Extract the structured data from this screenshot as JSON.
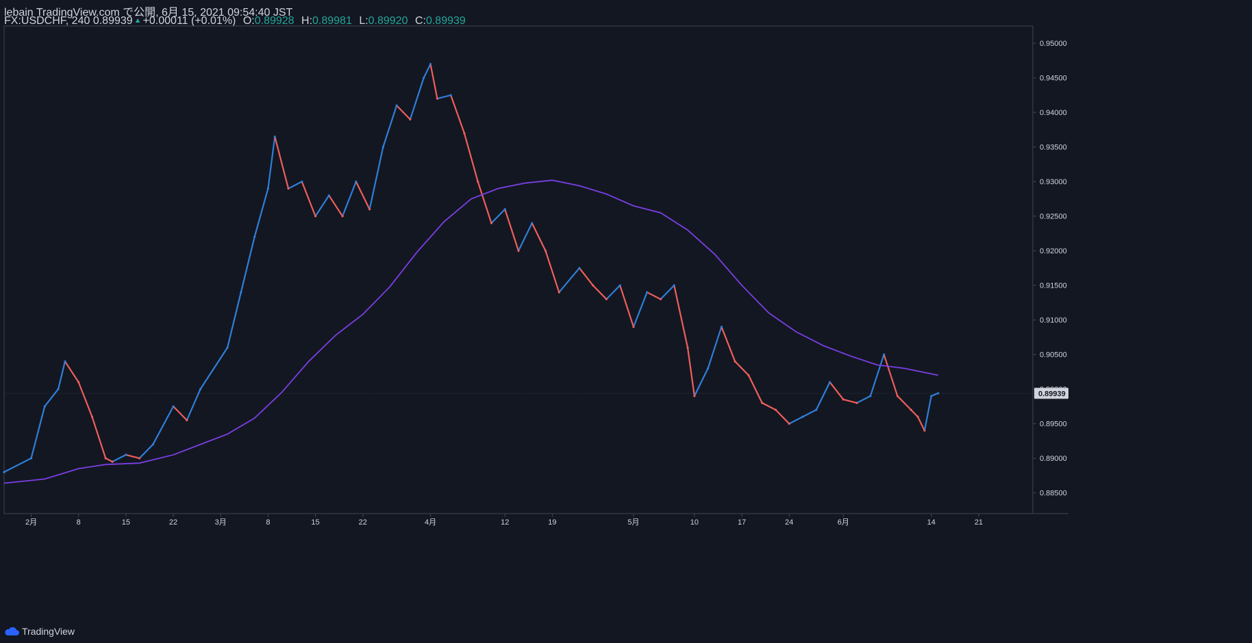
{
  "header": {
    "publisher_line": "lebain TradingView.com で公開, 6月 15, 2021 09:54:40 JST",
    "symbol": "FX:USDCHF, 240",
    "last": "0.89939",
    "change": "+0.00011 (+0.01%)",
    "o_label": "O:",
    "o_value": "0.89928",
    "h_label": "H:",
    "h_value": "0.89981",
    "l_label": "L:",
    "l_value": "0.89920",
    "c_label": "C:",
    "c_value": "0.89939"
  },
  "footer": {
    "brand": "TradingView"
  },
  "colors": {
    "background": "#131722",
    "up": "#2f7fd8",
    "down": "#ef5f5a",
    "ma": "#7b3fe4",
    "text": "#d1d4dc",
    "value": "#26a69a"
  },
  "chart_data": {
    "type": "line",
    "title": "",
    "xlabel": "",
    "ylabel": "",
    "ylim": [
      0.882,
      0.9525
    ],
    "y_ticks": [
      "0.95000",
      "0.94500",
      "0.94000",
      "0.93500",
      "0.93000",
      "0.92500",
      "0.92000",
      "0.91500",
      "0.91000",
      "0.90500",
      "0.90000",
      "0.89500",
      "0.89000",
      "0.88500"
    ],
    "y_tick_values": [
      0.95,
      0.945,
      0.94,
      0.935,
      0.93,
      0.925,
      0.92,
      0.915,
      0.91,
      0.905,
      0.9,
      0.895,
      0.89,
      0.885
    ],
    "x_ticks": [
      "2月",
      "8",
      "15",
      "22",
      "3月",
      "8",
      "15",
      "22",
      "4月",
      "12",
      "19",
      "5月",
      "10",
      "17",
      "24",
      "6月",
      "14",
      "21"
    ],
    "x_tick_dates": [
      "2021-02-01",
      "2021-02-08",
      "2021-02-15",
      "2021-02-22",
      "2021-03-01",
      "2021-03-08",
      "2021-03-15",
      "2021-03-22",
      "2021-04-01",
      "2021-04-12",
      "2021-04-19",
      "2021-05-01",
      "2021-05-10",
      "2021-05-17",
      "2021-05-24",
      "2021-06-01",
      "2021-06-14",
      "2021-06-21"
    ],
    "current_price_label": "0.89939",
    "current_price": 0.89939,
    "price_series": {
      "name": "",
      "x": [
        "2021-01-28",
        "2021-02-01",
        "2021-02-03",
        "2021-02-05",
        "2021-02-06",
        "2021-02-08",
        "2021-02-10",
        "2021-02-12",
        "2021-02-13",
        "2021-02-15",
        "2021-02-17",
        "2021-02-19",
        "2021-02-22",
        "2021-02-24",
        "2021-02-26",
        "2021-03-02",
        "2021-03-04",
        "2021-03-06",
        "2021-03-08",
        "2021-03-09",
        "2021-03-11",
        "2021-03-13",
        "2021-03-15",
        "2021-03-17",
        "2021-03-19",
        "2021-03-21",
        "2021-03-23",
        "2021-03-25",
        "2021-03-27",
        "2021-03-29",
        "2021-03-31",
        "2021-04-01",
        "2021-04-02",
        "2021-04-04",
        "2021-04-06",
        "2021-04-08",
        "2021-04-10",
        "2021-04-12",
        "2021-04-14",
        "2021-04-16",
        "2021-04-18",
        "2021-04-20",
        "2021-04-23",
        "2021-04-25",
        "2021-04-27",
        "2021-04-29",
        "2021-05-01",
        "2021-05-03",
        "2021-05-05",
        "2021-05-07",
        "2021-05-09",
        "2021-05-10",
        "2021-05-12",
        "2021-05-14",
        "2021-05-16",
        "2021-05-18",
        "2021-05-20",
        "2021-05-22",
        "2021-05-24",
        "2021-05-26",
        "2021-05-28",
        "2021-05-30",
        "2021-06-01",
        "2021-06-03",
        "2021-06-05",
        "2021-06-07",
        "2021-06-09",
        "2021-06-11",
        "2021-06-12",
        "2021-06-13",
        "2021-06-14",
        "2021-06-15"
      ],
      "y": [
        0.888,
        0.89,
        0.8975,
        0.9,
        0.904,
        0.901,
        0.896,
        0.89,
        0.8895,
        0.8905,
        0.89,
        0.892,
        0.8975,
        0.8955,
        0.9,
        0.906,
        0.914,
        0.922,
        0.929,
        0.9365,
        0.929,
        0.93,
        0.925,
        0.928,
        0.925,
        0.93,
        0.926,
        0.935,
        0.941,
        0.939,
        0.945,
        0.947,
        0.942,
        0.9425,
        0.937,
        0.93,
        0.924,
        0.926,
        0.92,
        0.924,
        0.92,
        0.914,
        0.9175,
        0.915,
        0.913,
        0.915,
        0.909,
        0.914,
        0.913,
        0.915,
        0.906,
        0.899,
        0.903,
        0.909,
        0.904,
        0.902,
        0.898,
        0.897,
        0.895,
        0.896,
        0.897,
        0.901,
        0.8985,
        0.898,
        0.899,
        0.905,
        0.899,
        0.897,
        0.896,
        0.894,
        0.899,
        0.8994
      ]
    },
    "ma_series": {
      "name": "",
      "x": [
        "2021-01-28",
        "2021-02-03",
        "2021-02-08",
        "2021-02-12",
        "2021-02-17",
        "2021-02-22",
        "2021-02-26",
        "2021-03-02",
        "2021-03-06",
        "2021-03-10",
        "2021-03-14",
        "2021-03-18",
        "2021-03-22",
        "2021-03-26",
        "2021-03-30",
        "2021-04-03",
        "2021-04-07",
        "2021-04-11",
        "2021-04-15",
        "2021-04-19",
        "2021-04-23",
        "2021-04-27",
        "2021-05-01",
        "2021-05-05",
        "2021-05-09",
        "2021-05-13",
        "2021-05-17",
        "2021-05-21",
        "2021-05-25",
        "2021-05-29",
        "2021-06-02",
        "2021-06-06",
        "2021-06-10",
        "2021-06-15"
      ],
      "y": [
        0.8864,
        0.887,
        0.8885,
        0.8891,
        0.8893,
        0.8905,
        0.892,
        0.8935,
        0.8958,
        0.8995,
        0.904,
        0.9078,
        0.9108,
        0.9148,
        0.9198,
        0.9242,
        0.9275,
        0.929,
        0.9298,
        0.9302,
        0.9294,
        0.9282,
        0.9265,
        0.9255,
        0.923,
        0.9195,
        0.915,
        0.911,
        0.9083,
        0.9063,
        0.9048,
        0.9035,
        0.903,
        0.902
      ]
    }
  }
}
